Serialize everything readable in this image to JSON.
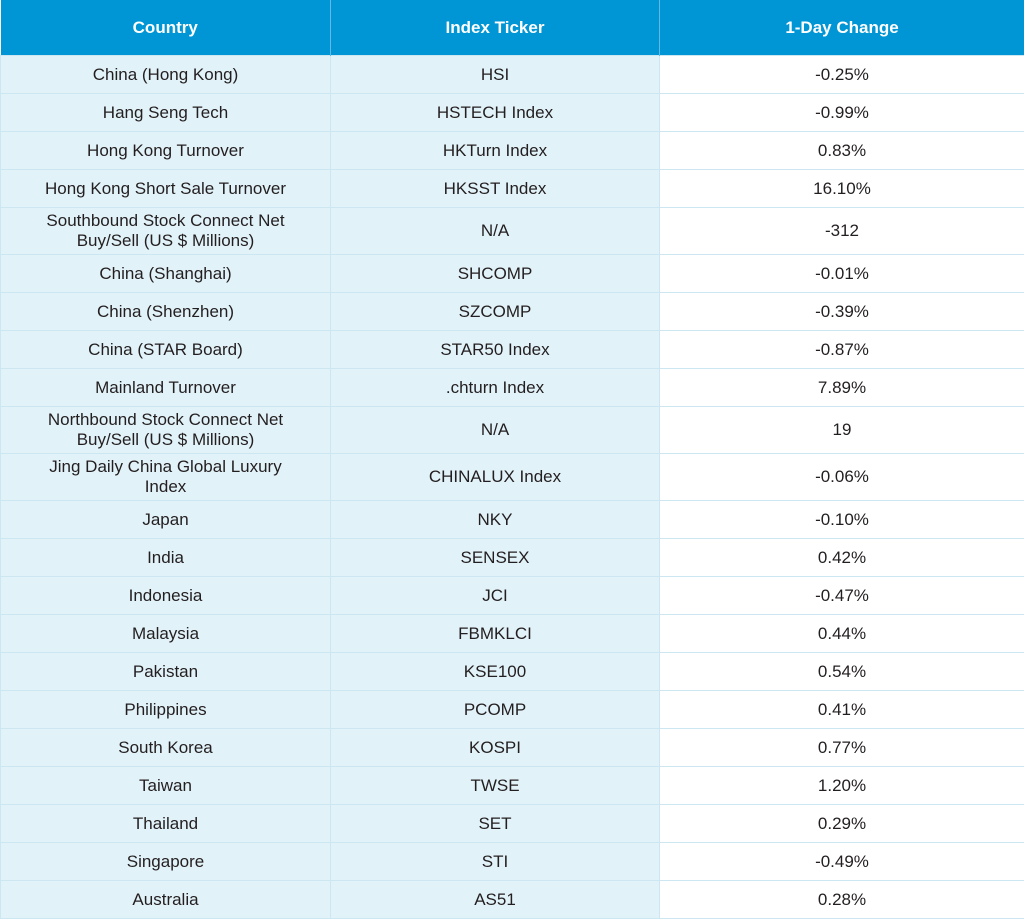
{
  "table": {
    "headers": [
      "Country",
      "Index Ticker",
      "1-Day Change"
    ],
    "rows": [
      [
        "China (Hong Kong)",
        "HSI",
        "-0.25%"
      ],
      [
        "Hang Seng Tech",
        "HSTECH Index",
        "-0.99%"
      ],
      [
        "Hong Kong Turnover",
        "HKTurn Index",
        "0.83%"
      ],
      [
        "Hong Kong Short Sale Turnover",
        "HKSST Index",
        "16.10%"
      ],
      [
        "Southbound Stock Connect Net Buy/Sell (US $ Millions)",
        "N/A",
        "-312"
      ],
      [
        "China (Shanghai)",
        "SHCOMP",
        "-0.01%"
      ],
      [
        "China (Shenzhen)",
        "SZCOMP",
        "-0.39%"
      ],
      [
        "China (STAR Board)",
        "STAR50 Index",
        "-0.87%"
      ],
      [
        "Mainland Turnover",
        ".chturn Index",
        "7.89%"
      ],
      [
        "Northbound Stock Connect Net Buy/Sell (US $ Millions)",
        "N/A",
        "19"
      ],
      [
        "Jing Daily China Global Luxury Index",
        "CHINALUX Index",
        "-0.06%"
      ],
      [
        "Japan",
        "NKY",
        "-0.10%"
      ],
      [
        "India",
        "SENSEX",
        "0.42%"
      ],
      [
        "Indonesia",
        "JCI",
        "-0.47%"
      ],
      [
        "Malaysia",
        "FBMKLCI",
        "0.44%"
      ],
      [
        "Pakistan",
        "KSE100",
        "0.54%"
      ],
      [
        "Philippines",
        "PCOMP",
        "0.41%"
      ],
      [
        "South Korea",
        "KOSPI",
        "0.77%"
      ],
      [
        "Taiwan",
        "TWSE",
        "1.20%"
      ],
      [
        "Thailand",
        "SET",
        "0.29%"
      ],
      [
        "Singapore",
        "STI",
        "-0.49%"
      ],
      [
        "Australia",
        "AS51",
        "0.28%"
      ]
    ]
  }
}
